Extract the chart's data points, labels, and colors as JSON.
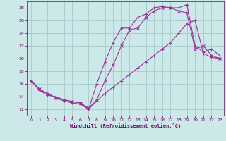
{
  "bg_color": "#cce8e8",
  "grid_color": "#9dc4c4",
  "line_color": "#993399",
  "xlabel": "Windchill (Refroidissement éolien,°C)",
  "xlabel_color": "#660066",
  "tick_color": "#660066",
  "xlim": [
    -0.5,
    23.5
  ],
  "ylim": [
    11,
    29
  ],
  "yticks": [
    12,
    14,
    16,
    18,
    20,
    22,
    24,
    26,
    28
  ],
  "xticks": [
    0,
    1,
    2,
    3,
    4,
    5,
    6,
    7,
    8,
    9,
    10,
    11,
    12,
    13,
    14,
    15,
    16,
    17,
    18,
    19,
    20,
    21,
    22,
    23
  ],
  "line1_x": [
    0,
    1,
    2,
    3,
    4,
    5,
    6,
    7,
    8,
    9,
    10,
    11,
    12,
    13,
    14,
    15,
    16,
    17,
    18,
    19,
    20,
    21,
    22,
    23
  ],
  "line1_y": [
    16.5,
    15.0,
    14.5,
    13.8,
    13.3,
    13.0,
    12.8,
    12.0,
    13.3,
    14.5,
    15.5,
    16.5,
    17.5,
    18.5,
    19.5,
    20.5,
    21.5,
    22.5,
    24.0,
    25.5,
    26.0,
    20.8,
    20.2,
    20.0
  ],
  "line2_x": [
    0,
    1,
    2,
    3,
    4,
    5,
    6,
    7,
    8,
    9,
    10,
    11,
    12,
    13,
    14,
    15,
    16,
    17,
    18,
    19,
    20,
    21,
    22,
    23
  ],
  "line2_y": [
    16.5,
    15.2,
    14.5,
    13.8,
    13.5,
    13.2,
    13.0,
    12.2,
    13.5,
    16.5,
    19.0,
    22.0,
    24.5,
    24.8,
    26.5,
    27.5,
    28.0,
    28.0,
    27.5,
    27.2,
    21.5,
    22.0,
    20.5,
    20.0
  ],
  "line3_x": [
    0,
    1,
    2,
    3,
    4,
    5,
    6,
    7,
    8,
    9,
    10,
    11,
    12,
    13,
    14,
    15,
    16,
    17,
    18,
    19,
    20,
    21,
    22,
    23
  ],
  "line3_y": [
    16.5,
    15.0,
    14.2,
    14.0,
    13.5,
    13.2,
    13.0,
    12.0,
    16.0,
    19.5,
    22.5,
    24.8,
    24.8,
    26.5,
    27.0,
    28.0,
    28.2,
    28.0,
    28.0,
    28.5,
    22.0,
    21.0,
    21.5,
    20.5
  ]
}
